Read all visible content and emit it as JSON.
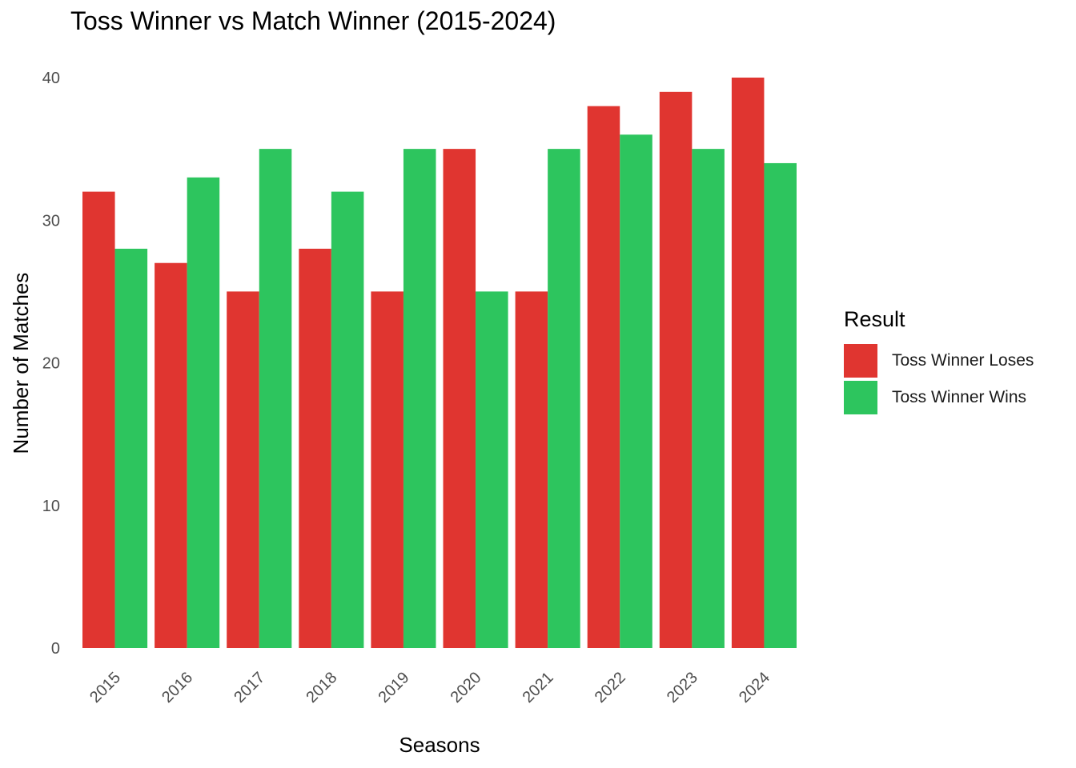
{
  "chart_data": {
    "type": "bar",
    "title": "Toss Winner vs Match Winner (2015-2024)",
    "xlabel": "Seasons",
    "ylabel": "Number of Matches",
    "categories": [
      "2015",
      "2016",
      "2017",
      "2018",
      "2019",
      "2020",
      "2021",
      "2022",
      "2023",
      "2024"
    ],
    "series": [
      {
        "name": "Toss Winner Loses",
        "color": "#E03530",
        "values": [
          32,
          27,
          25,
          28,
          25,
          35,
          25,
          38,
          39,
          40
        ]
      },
      {
        "name": "Toss Winner Wins",
        "color": "#2DC55E",
        "values": [
          28,
          33,
          35,
          32,
          35,
          25,
          35,
          36,
          35,
          34
        ]
      }
    ],
    "ylim": [
      0,
      40
    ],
    "yticks": [
      0,
      10,
      20,
      30,
      40
    ],
    "grid": false,
    "legend": {
      "title": "Result",
      "position": "right"
    }
  }
}
